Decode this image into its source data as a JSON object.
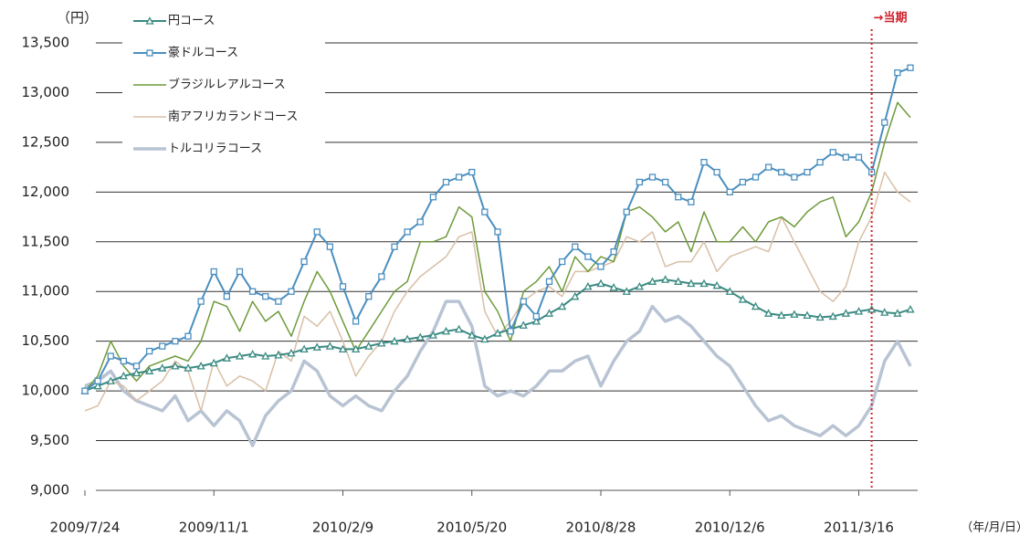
{
  "chart_data": {
    "type": "line",
    "y_unit_label": "（円）",
    "x_unit_label": "（年/月/日）",
    "categories": [
      "2009/7/24",
      null,
      null,
      null,
      null,
      null,
      null,
      null,
      null,
      null,
      "2009/11/1",
      null,
      null,
      null,
      null,
      null,
      null,
      null,
      null,
      null,
      "2010/2/9",
      null,
      null,
      null,
      null,
      null,
      null,
      null,
      null,
      null,
      "2010/5/20",
      null,
      null,
      null,
      null,
      null,
      null,
      null,
      null,
      null,
      "2010/8/28",
      null,
      null,
      null,
      null,
      null,
      null,
      null,
      null,
      null,
      "2010/12/6",
      null,
      null,
      null,
      null,
      null,
      null,
      null,
      null,
      null,
      "2011/3/16",
      null,
      null,
      null,
      null
    ],
    "ylim": [
      9000,
      13500
    ],
    "yticks": [
      {
        "value": 9000,
        "label": "9,000"
      },
      {
        "value": 9500,
        "label": "9,500"
      },
      {
        "value": 10000,
        "label": "10,000"
      },
      {
        "value": 10500,
        "label": "10,500"
      },
      {
        "value": 11000,
        "label": "11,000"
      },
      {
        "value": 11500,
        "label": "11,500"
      },
      {
        "value": 12000,
        "label": "12,000"
      },
      {
        "value": 12500,
        "label": "12,500"
      },
      {
        "value": 13000,
        "label": "13,000"
      },
      {
        "value": 13500,
        "label": "13,500"
      }
    ],
    "grid": true,
    "legend": "upper left",
    "annotation": {
      "label": "→当期",
      "at": 61,
      "color": "#d0202a"
    },
    "series": [
      {
        "name": "円コース",
        "color": "#3a8a82",
        "marker": "triangle",
        "width": 2,
        "values": [
          10000,
          10050,
          10100,
          10150,
          10180,
          10200,
          10230,
          10250,
          10230,
          10250,
          10280,
          10330,
          10350,
          10370,
          10350,
          10360,
          10380,
          10420,
          10440,
          10450,
          10420,
          10420,
          10450,
          10480,
          10500,
          10520,
          10540,
          10560,
          10600,
          10620,
          10560,
          10520,
          10580,
          10620,
          10660,
          10700,
          10780,
          10850,
          10950,
          11050,
          11080,
          11040,
          11000,
          11050,
          11100,
          11120,
          11100,
          11080,
          11080,
          11060,
          11000,
          10920,
          10850,
          10780,
          10760,
          10770,
          10760,
          10740,
          10750,
          10780,
          10800,
          10820,
          10790,
          10780,
          10820
        ]
      },
      {
        "name": "豪ドルコース",
        "color": "#4a8fc0",
        "marker": "square",
        "width": 2,
        "values": [
          10000,
          10100,
          10350,
          10300,
          10250,
          10400,
          10450,
          10500,
          10550,
          10900,
          11200,
          10950,
          11200,
          11000,
          10950,
          10900,
          11000,
          11300,
          11600,
          11450,
          11050,
          10700,
          10950,
          11150,
          11450,
          11600,
          11700,
          11950,
          12100,
          12150,
          12200,
          11800,
          11600,
          10600,
          10900,
          10750,
          11100,
          11300,
          11450,
          11350,
          11250,
          11400,
          11800,
          12100,
          12150,
          12100,
          11950,
          11900,
          12300,
          12200,
          12000,
          12100,
          12150,
          12250,
          12200,
          12150,
          12200,
          12300,
          12400,
          12350,
          12350,
          12200,
          12700,
          13200,
          13250
        ]
      },
      {
        "name": "ブラジルレアルコース",
        "color": "#6e9a3a",
        "marker": "none",
        "width": 1.5,
        "values": [
          10000,
          10150,
          10500,
          10250,
          10100,
          10250,
          10300,
          10350,
          10300,
          10500,
          10900,
          10850,
          10600,
          10900,
          10700,
          10800,
          10550,
          10900,
          11200,
          11000,
          10700,
          10400,
          10600,
          10800,
          11000,
          11100,
          11500,
          11500,
          11550,
          11850,
          11750,
          11000,
          10800,
          10500,
          11000,
          11100,
          11250,
          11000,
          11350,
          11200,
          11350,
          11300,
          11800,
          11850,
          11750,
          11600,
          11700,
          11400,
          11800,
          11500,
          11500,
          11650,
          11500,
          11700,
          11750,
          11650,
          11800,
          11900,
          11950,
          11550,
          11700,
          12000,
          12500,
          12900,
          12750
        ]
      },
      {
        "name": "南アフリカランドコース",
        "color": "#d8bfa6",
        "marker": "none",
        "width": 1.5,
        "values": [
          9800,
          9850,
          10100,
          10050,
          9900,
          10000,
          10100,
          10300,
          10200,
          9800,
          10300,
          10050,
          10150,
          10100,
          10000,
          10400,
          10300,
          10750,
          10650,
          10800,
          10500,
          10150,
          10350,
          10500,
          10800,
          11000,
          11150,
          11250,
          11350,
          11550,
          11600,
          10800,
          10550,
          10700,
          10900,
          11000,
          11050,
          10950,
          11200,
          11200,
          11250,
          11300,
          11550,
          11500,
          11600,
          11250,
          11300,
          11300,
          11500,
          11200,
          11350,
          11400,
          11450,
          11400,
          11750,
          11500,
          11250,
          11000,
          10900,
          11050,
          11500,
          11750,
          12200,
          12000,
          11900
        ]
      },
      {
        "name": "トルコリラコース",
        "color": "#b8c3d3",
        "marker": "none",
        "width": 3.5,
        "values": [
          10050,
          10100,
          10200,
          10000,
          9900,
          9850,
          9800,
          9950,
          9700,
          9800,
          9650,
          9800,
          9700,
          9450,
          9750,
          9900,
          10000,
          10300,
          10200,
          9950,
          9850,
          9950,
          9850,
          9800,
          10000,
          10150,
          10400,
          10600,
          10900,
          10900,
          10650,
          10050,
          9950,
          10000,
          9950,
          10050,
          10200,
          10200,
          10300,
          10350,
          10050,
          10300,
          10500,
          10600,
          10850,
          10700,
          10750,
          10650,
          10500,
          10350,
          10250,
          10050,
          9850,
          9700,
          9750,
          9650,
          9600,
          9550,
          9650,
          9550,
          9650,
          9850,
          10300,
          10500,
          10250
        ]
      }
    ]
  }
}
